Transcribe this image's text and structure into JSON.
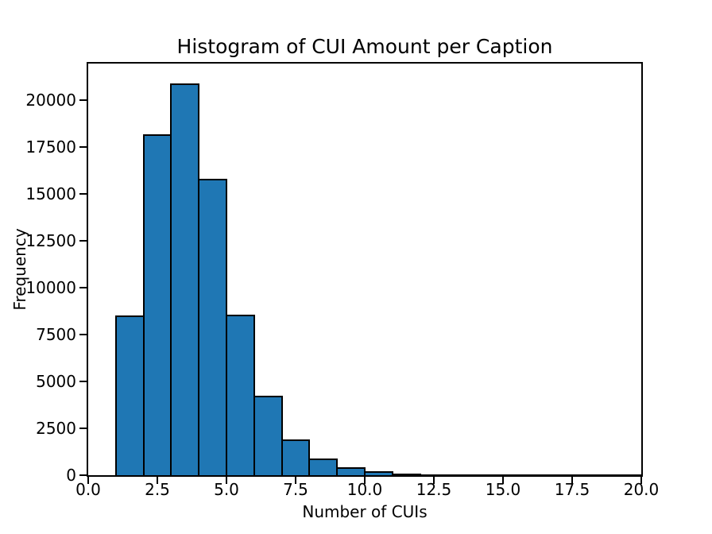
{
  "figure": {
    "background": "#ffffff",
    "text_color": "#000000",
    "spine_color": "#000000"
  },
  "chart_data": {
    "type": "bar",
    "subtype": "histogram",
    "title": "Histogram of CUI Amount per Caption",
    "xlabel": "Number of CUIs",
    "ylabel": "Frequency",
    "xlim": [
      0,
      20
    ],
    "ylim": [
      0,
      21950
    ],
    "grid": false,
    "xticks": [
      0.0,
      2.5,
      5.0,
      7.5,
      10.0,
      12.5,
      15.0,
      17.5,
      20.0
    ],
    "xtick_labels": [
      "0.0",
      "2.5",
      "5.0",
      "7.5",
      "10.0",
      "12.5",
      "15.0",
      "17.5",
      "20.0"
    ],
    "yticks": [
      0,
      2500,
      5000,
      7500,
      10000,
      12500,
      15000,
      17500,
      20000
    ],
    "ytick_labels": [
      "0",
      "2500",
      "5000",
      "7500",
      "10000",
      "12500",
      "15000",
      "17500",
      "20000"
    ],
    "bin_width": 1,
    "bin_starts": [
      1,
      2,
      3,
      4,
      5,
      6,
      7,
      8,
      9,
      10,
      11,
      12,
      13,
      14,
      15,
      16,
      17,
      18,
      19
    ],
    "frequencies": [
      8500,
      18200,
      20900,
      15800,
      8550,
      4250,
      1900,
      900,
      430,
      220,
      100,
      45,
      25,
      18,
      12,
      10,
      8,
      4,
      3
    ],
    "bar_color": "#1f77b4",
    "bar_edge_color": "#000000"
  }
}
